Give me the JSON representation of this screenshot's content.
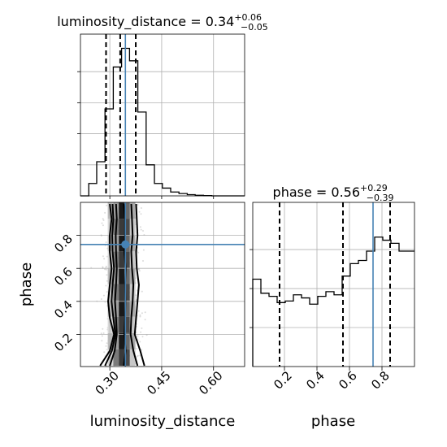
{
  "chart_data": {
    "type": "corner",
    "parameters": [
      "luminosity_distance",
      "phase"
    ],
    "truth": {
      "luminosity_distance": 0.345,
      "phase": 0.745
    },
    "colors": {
      "truth": "#4682b4",
      "hist": "#000000",
      "contour": "#000000"
    },
    "grid": true,
    "luminosity_distance": {
      "title_param": "luminosity_distance",
      "title_median": "0.34",
      "title_plus": "+0.06",
      "title_minus": "−0.05",
      "quantiles": [
        0.289,
        0.33,
        0.375
      ],
      "xlim": [
        0.215,
        0.69
      ],
      "ticks": [
        0.3,
        0.45,
        0.6
      ],
      "tick_labels": [
        "0.30",
        "0.45",
        "0.60"
      ],
      "axis_label": "luminosity_distance",
      "hist_edges": [
        0.215,
        0.239,
        0.262,
        0.286,
        0.31,
        0.334,
        0.357,
        0.381,
        0.405,
        0.429,
        0.452,
        0.476,
        0.5,
        0.524,
        0.547,
        0.571,
        0.595,
        0.619,
        0.642,
        0.666,
        0.69
      ],
      "hist_counts": [
        0,
        0.08,
        0.22,
        0.56,
        0.83,
        0.95,
        0.87,
        0.54,
        0.2,
        0.08,
        0.05,
        0.025,
        0.015,
        0.008,
        0.004,
        0.002,
        0,
        0,
        0,
        0
      ]
    },
    "phase": {
      "title_param": "phase",
      "title_median": "0.56",
      "title_plus": "+0.29",
      "title_minus": "−0.39",
      "quantiles": [
        0.17,
        0.56,
        0.85
      ],
      "xlim": [
        0.005,
        1.0
      ],
      "ticks": [
        0.2,
        0.4,
        0.6,
        0.8
      ],
      "tick_labels": [
        "0.2",
        "0.4",
        "0.6",
        "0.8"
      ],
      "axis_label": "phase",
      "hist_edges": [
        0.005,
        0.055,
        0.105,
        0.155,
        0.205,
        0.255,
        0.305,
        0.355,
        0.405,
        0.455,
        0.505,
        0.555,
        0.605,
        0.655,
        0.705,
        0.755,
        0.805,
        0.855,
        0.905,
        0.955,
        1.0
      ],
      "hist_counts": [
        0.56,
        0.47,
        0.45,
        0.41,
        0.42,
        0.46,
        0.44,
        0.4,
        0.45,
        0.48,
        0.46,
        0.58,
        0.66,
        0.68,
        0.74,
        0.83,
        0.81,
        0.79,
        0.74,
        0.74
      ]
    },
    "joint": {
      "xlim": [
        0.215,
        0.69
      ],
      "ylim": [
        0.005,
        1.0
      ],
      "yticks": [
        0.2,
        0.4,
        0.6,
        0.8
      ],
      "ytick_labels": [
        "0.2",
        "0.4",
        "0.6",
        "0.8"
      ],
      "y_axis_label": "phase",
      "contour_x_edges": [
        [
          0.272,
          0.3,
          0.312,
          0.3,
          0.295,
          0.3,
          0.305,
          0.3,
          0.3,
          0.305,
          0.3
        ],
        [
          0.286,
          0.306,
          0.316,
          0.31,
          0.305,
          0.308,
          0.312,
          0.308,
          0.307,
          0.31,
          0.308
        ],
        [
          0.3,
          0.314,
          0.32,
          0.318,
          0.315,
          0.318,
          0.32,
          0.318,
          0.317,
          0.32,
          0.318
        ],
        [
          0.34,
          0.346,
          0.342,
          0.344,
          0.345,
          0.344,
          0.346,
          0.342,
          0.344,
          0.344,
          0.34
        ],
        [
          0.38,
          0.368,
          0.36,
          0.362,
          0.366,
          0.368,
          0.364,
          0.362,
          0.366,
          0.364,
          0.362
        ],
        [
          0.4,
          0.388,
          0.372,
          0.376,
          0.38,
          0.384,
          0.378,
          0.376,
          0.38,
          0.378,
          0.376
        ]
      ],
      "contour_y": [
        0.01,
        0.1,
        0.2,
        0.3,
        0.4,
        0.5,
        0.6,
        0.7,
        0.8,
        0.9,
        0.99
      ]
    }
  }
}
